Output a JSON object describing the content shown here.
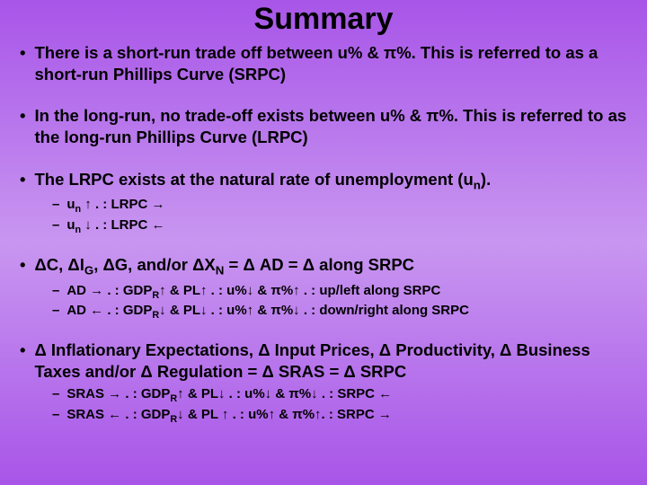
{
  "title": "Summary",
  "colors": {
    "text": "#000000",
    "bg_top": "#a855e8",
    "bg_mid": "#c896f0"
  },
  "typography": {
    "title_fontsize": 34,
    "main_fontsize": 18.5,
    "sub_fontsize": 15,
    "font_family": "Arial",
    "font_weight": "bold"
  },
  "bullets": [
    {
      "text_html": "There is a short-run trade off between u% & π%. This is referred to as a short-run Phillips Curve (SRPC)",
      "subs": []
    },
    {
      "text_html": "In the long-run, no trade-off exists between u% & π%. This is referred to as the long-run Phillips Curve (LRPC)",
      "subs": []
    },
    {
      "text_html": "The LRPC exists at the natural rate of unemployment (u<sub>n</sub>).",
      "subs": [
        "u<sub>n</sub> ↑ . : LRPC →",
        "u<sub>n</sub> ↓ . : LRPC ←"
      ]
    },
    {
      "text_html": "ΔC, ΔI<sub>G</sub>, ΔG, and/or ΔX<sub>N</sub> = Δ AD = Δ along SRPC",
      "subs": [
        "AD → . : GDP<sub>R</sub>↑ & PL↑ . : u%↓ & π%↑ . : up/left along SRPC",
        "AD ← . : GDP<sub>R</sub>↓ & PL↓ . : u%↑ & π%↓ . : down/right along SRPC"
      ]
    },
    {
      "text_html": "Δ Inflationary Expectations, Δ Input Prices, Δ Productivity, Δ Business Taxes and/or Δ Regulation = Δ SRAS = Δ SRPC",
      "subs": [
        "SRAS → . : GDP<sub>R</sub>↑ & PL↓ . : u%↓ & π%↓ . : SRPC ←",
        "SRAS ← . : GDP<sub>R</sub>↓ & PL ↑ . : u%↑ & π%↑. : SRPC →"
      ]
    }
  ]
}
